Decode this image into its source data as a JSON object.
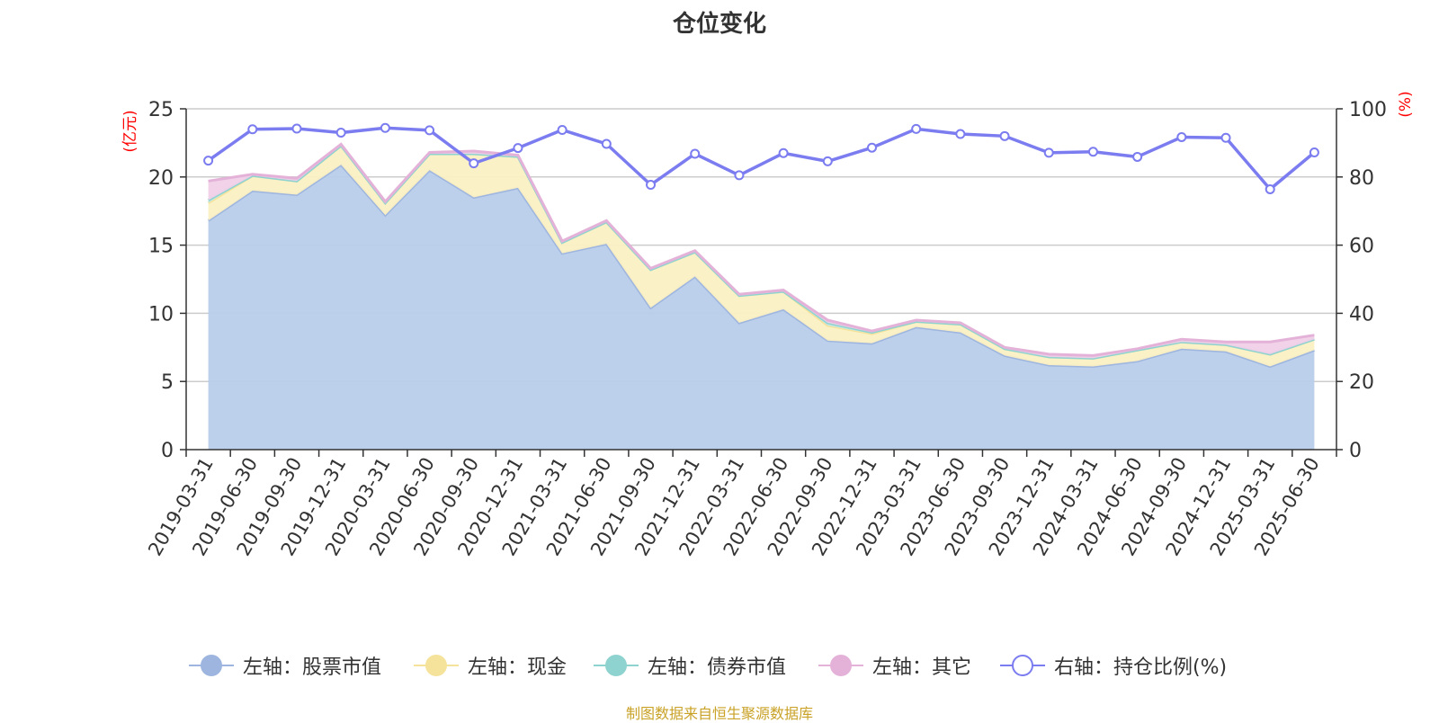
{
  "title": "仓位变化",
  "source": "制图数据来自恒生聚源数据库",
  "colors": {
    "stock": "#9db5df",
    "stock_fill": "#b8cdea",
    "cash": "#f5e39c",
    "cash_fill": "#fbf0c3",
    "bond": "#8fd3d0",
    "bond_fill": "#c2e8e6",
    "other": "#e4b2d8",
    "other_fill": "#f0d0e8",
    "ratio": "#7b7cf0",
    "axis_title": "#ff0000"
  },
  "legend": [
    {
      "label": "左轴：股票市值",
      "key": "stock",
      "icon": "filled-circle-icon"
    },
    {
      "label": "左轴：现金",
      "key": "cash",
      "icon": "filled-circle-icon"
    },
    {
      "label": "左轴：债券市值",
      "key": "bond",
      "icon": "filled-circle-icon"
    },
    {
      "label": "左轴：其它",
      "key": "other",
      "icon": "filled-circle-icon"
    },
    {
      "label": "右轴：持仓比例(%)",
      "key": "ratio",
      "icon": "hollow-circle-icon"
    }
  ],
  "chart_data": {
    "type": "area",
    "title": "仓位变化",
    "y_left_label": "(亿元)",
    "y_right_label": "(%)",
    "y_left_lim": [
      0,
      25
    ],
    "y_left_ticks": [
      0,
      5,
      10,
      15,
      20,
      25
    ],
    "y_right_lim": [
      0,
      100
    ],
    "y_right_ticks": [
      0,
      20,
      40,
      60,
      80,
      100
    ],
    "grid": true,
    "legend_position": "bottom",
    "stacked": true,
    "categories": [
      "2019-03-31",
      "2019-06-30",
      "2019-09-30",
      "2019-12-31",
      "2020-03-31",
      "2020-06-30",
      "2020-09-30",
      "2020-12-31",
      "2021-03-31",
      "2021-06-30",
      "2021-09-30",
      "2021-12-31",
      "2022-03-31",
      "2022-06-30",
      "2022-09-30",
      "2022-12-31",
      "2023-03-31",
      "2023-06-30",
      "2023-09-30",
      "2023-12-31",
      "2024-03-31",
      "2024-06-30",
      "2024-09-30",
      "2024-12-31",
      "2025-03-31",
      "2025-06-30"
    ],
    "series": [
      {
        "name": "左轴：股票市值",
        "axis": "left",
        "type": "area",
        "values": [
          16.8,
          19.0,
          18.7,
          20.9,
          17.2,
          20.5,
          18.5,
          19.2,
          14.4,
          15.1,
          10.4,
          12.7,
          9.3,
          10.3,
          8.0,
          7.8,
          9.0,
          8.6,
          6.9,
          6.2,
          6.1,
          6.5,
          7.4,
          7.2,
          6.1,
          7.3
        ]
      },
      {
        "name": "左轴：现金",
        "axis": "left",
        "type": "area",
        "values": [
          1.3,
          1.1,
          1.0,
          1.4,
          0.9,
          1.2,
          3.2,
          2.3,
          0.8,
          1.6,
          2.8,
          1.8,
          2.0,
          1.3,
          1.1,
          0.7,
          0.4,
          0.6,
          0.5,
          0.6,
          0.6,
          0.8,
          0.5,
          0.5,
          0.9,
          0.8
        ]
      },
      {
        "name": "左轴：债券市值",
        "axis": "left",
        "type": "area",
        "values": [
          0.2,
          0.0,
          0.0,
          0.0,
          0.0,
          0.0,
          0.0,
          0.0,
          0.0,
          0.0,
          0.0,
          0.0,
          0.0,
          0.0,
          0.2,
          0.1,
          0.0,
          0.0,
          0.0,
          0.0,
          0.0,
          0.0,
          0.0,
          0.0,
          0.0,
          0.0
        ]
      },
      {
        "name": "左轴：其它",
        "axis": "left",
        "type": "area",
        "values": [
          1.4,
          0.1,
          0.2,
          0.1,
          0.1,
          0.1,
          0.2,
          0.1,
          0.1,
          0.1,
          0.1,
          0.1,
          0.1,
          0.1,
          0.2,
          0.1,
          0.1,
          0.1,
          0.1,
          0.2,
          0.2,
          0.1,
          0.2,
          0.2,
          0.9,
          0.3
        ]
      },
      {
        "name": "右轴：持仓比例(%)",
        "axis": "right",
        "type": "line",
        "values": [
          84.8,
          94.0,
          94.2,
          93.0,
          94.4,
          93.7,
          84.0,
          88.5,
          93.8,
          89.7,
          77.7,
          86.8,
          80.5,
          87.0,
          84.6,
          88.6,
          94.1,
          92.6,
          92.0,
          87.1,
          87.4,
          85.9,
          91.7,
          91.5,
          76.4,
          87.2
        ]
      }
    ]
  }
}
